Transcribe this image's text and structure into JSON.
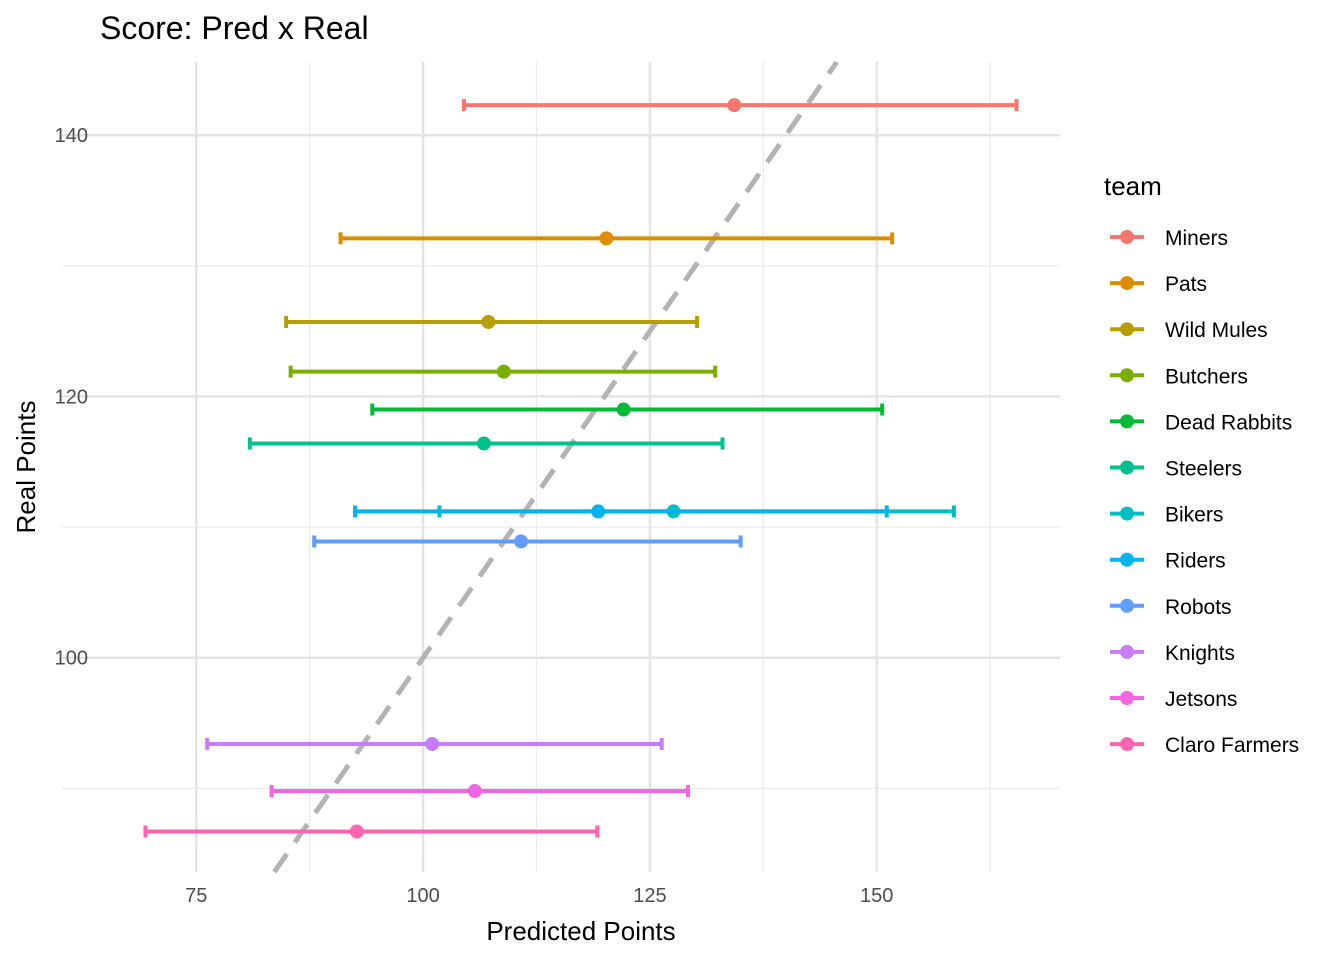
{
  "chart_data": {
    "type": "scatter",
    "title": "Score: Pred x Real",
    "xlabel": "Predicted Points",
    "ylabel": "Real Points",
    "xlim": [
      60.2,
      170.2
    ],
    "ylim": [
      83.6,
      145.6
    ],
    "x_major_ticks": [
      75,
      100,
      125,
      150
    ],
    "x_minor_ticks": [
      87.5,
      112.5,
      137.5,
      162.5
    ],
    "y_major_ticks": [
      100,
      120,
      140
    ],
    "y_minor_ticks": [
      90,
      110,
      130
    ],
    "grid": true,
    "reference_line": {
      "type": "y=x",
      "style": "dashed",
      "color": "#b3b3b3"
    },
    "legend": {
      "title": "team",
      "position": "right"
    },
    "series": [
      {
        "name": "Miners",
        "color": "#F8766D",
        "real": 142.3,
        "pred": 134.3,
        "pred_low": 104.5,
        "pred_high": 165.4
      },
      {
        "name": "Pats",
        "color": "#DE8C00",
        "real": 132.1,
        "pred": 120.2,
        "pred_low": 90.9,
        "pred_high": 151.7
      },
      {
        "name": "Wild Mules",
        "color": "#B79F00",
        "real": 125.7,
        "pred": 107.2,
        "pred_low": 84.9,
        "pred_high": 130.2
      },
      {
        "name": "Butchers",
        "color": "#7CAE00",
        "real": 121.9,
        "pred": 108.9,
        "pred_low": 85.4,
        "pred_high": 132.2
      },
      {
        "name": "Dead Rabbits",
        "color": "#00BA38",
        "real": 119.0,
        "pred": 122.1,
        "pred_low": 94.4,
        "pred_high": 150.6
      },
      {
        "name": "Steelers",
        "color": "#00C08B",
        "real": 116.4,
        "pred": 106.7,
        "pred_low": 80.9,
        "pred_high": 133.0
      },
      {
        "name": "Bikers",
        "color": "#00BFC4",
        "real": 111.2,
        "pred": 127.6,
        "pred_low": 101.8,
        "pred_high": 158.5
      },
      {
        "name": "Riders",
        "color": "#00B4F0",
        "real": 111.2,
        "pred": 119.3,
        "pred_low": 92.5,
        "pred_high": 151.1
      },
      {
        "name": "Robots",
        "color": "#619CFF",
        "real": 108.9,
        "pred": 110.8,
        "pred_low": 88.0,
        "pred_high": 135.0
      },
      {
        "name": "Knights",
        "color": "#C77CFF",
        "real": 93.4,
        "pred": 101.0,
        "pred_low": 76.2,
        "pred_high": 126.3
      },
      {
        "name": "Jetsons",
        "color": "#F564E3",
        "real": 89.8,
        "pred": 105.7,
        "pred_low": 83.3,
        "pred_high": 129.2
      },
      {
        "name": "Claro Farmers",
        "color": "#FF64B0",
        "real": 86.7,
        "pred": 92.7,
        "pred_low": 69.4,
        "pred_high": 119.2
      }
    ]
  }
}
